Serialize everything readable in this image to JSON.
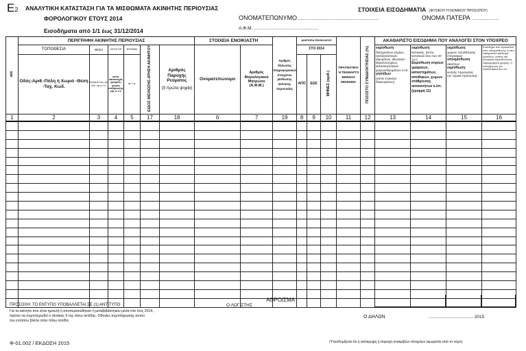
{
  "header": {
    "form_code": "E",
    "form_sub": "2",
    "title": "ΑΝΑΛΥΤΙΚΗ ΚΑΤΑΣΤΑΣΗ ΓΙΑ ΤΑ ΜΙΣΘΩΜΑΤΑ ΑΚΙΝΗΤΗΣ ΠΕΡΙΟΥΣΙΑΣ",
    "subtitle": "ΦΟΡΟΛΟΓΙΚΟΥ ΕΤΟΥΣ 2014",
    "period": "Εισοδήματα από 1/1 έως 31/12/2014"
  },
  "taxpayer": {
    "heading": "ΣΤΟΙΧΕΙΑ ΕΙΣΟΔΗΜΑΤΙΑ",
    "heading_note": "(ΦΥΣΙΚΟΥ Ή ΝΟΜΙΚΟΥ ΠΡΟΣΩΠΟΥ)",
    "name_label": "ΟΝΟΜΑΤΕΠΩΝΥΜΟ",
    "name_value": "........................................................................",
    "father_label": "ΟΝΟΜΑ ΠΑΤΕΡΑ",
    "father_value": "........................",
    "afm_label": "Α.Φ.Μ.",
    "afm_value": "...................................................."
  },
  "table": {
    "groups": {
      "sn": "α/α",
      "property": "ΠΕΡΙΓΡΑΦΗ ΑΚΙΝΗΤΗΣ ΠΕΡΙΟΥΣΙΑΣ",
      "tenant": "ΣΤΟΙΧΕΙΑ ΕΝΟΙΚΙΑΣΤΗ",
      "duration": "ΔΙΑΡΚΕΙΑ ΕΝΟΙΚΙΑΣΗΣ",
      "gross": "ΑΚΑΘΑΡΙΣΤΟ ΕΙΣΟΔΗΜΑ ΠΟΥ ΑΝΑΛΟΓΕΙ ΣΤΟΝ ΥΠΟΧΡΕΟ"
    },
    "sub": {
      "location": "ΤΟΠΟΘΕΣΙΑ",
      "position": "ΘΕΣΗ",
      "category": "ΚΑΤΗΓΟΡ",
      "area": "ΕΠΙΦΑΝ",
      "year": "ΣΤΟ 2014"
    },
    "cols": {
      "c2": "Οδός-Αριθ.-Πόλη ή Χωριό -Θέση -Ταχ. Κωδ.",
      "c3": "ισόγειο 1ος ορ 2ος ορ κ.τ.λ.",
      "c4": "οικία, κατάστημα, γραφείο, χώρος στάθμευσης γής κ.τ.λ.",
      "c5": "σε τ.μ.",
      "c17": "ΕΙΔΟΣ ΜΙΣΘΩΣΗΣ-ΧΡΗΣΗ ΑΚΙΝΗΤΟΥ",
      "c18": "Αριθμός Παροχής Ρεύματος",
      "c18b": "(9 πρώτα ψηφία)",
      "c6": "Ονοματεπώνυμο",
      "c7": "Αριθμός Φορολογικού Μητρώου (Α.Φ.Μ.)",
      "c19": "Αριθμός δήλωσης πληροφοριακών στοιχείων μίσθωσης ακίνητης περιουσίας",
      "c8": "ΑΠΟ",
      "c9": "ΕΩΣ",
      "c10": "ΜΗΝΕΣ (αριθ.)",
      "c11": "ΠΡΑΓΜΑΤΙΚΟ Ή ΤΕΚΜΑΡΤΟ ΜΗΝΙΑΙΟ ΜΙΣΘΩΜΑ",
      "c12": "ΠΟΣΟΣΤΟ ΣΥΝΙΔΙΟΚΤΗΣΙΑΣ (%)",
      "c13a": "εκμίσθωση",
      "c13b": "διατηρητέων κτιρίων, εκκλησιαστικών ιδρυμάτων, ιδιωτικών θεραπευτηρίων, κατασκηνωτικών χώρων/ιδρυμάτων κ.λπ.",
      "c13c": "γηπέδων",
      "c13d": "(εκτός ενοικίων δικαιωμάτων)",
      "c14a": "εκμίσθωση",
      "c14b": "κατοικίας, (εκτός κατοικιών άνω των 20 τ.μ.)",
      "c14c": "Εκμίσθωση κτιρίων γραφείων, καταστημάτων, αποθηκών, χώρων στάθμευσης αυτοκινήτων κ.λπ. (γραμμή 11)",
      "c15a": "εκμίσθωση",
      "c15b": "χώρων τοποθέτησης επιγραφών",
      "c15c": "υπεκμίσθωση",
      "c15d": "ακινήτων",
      "c15e": "εκμίσθωση",
      "c15f": "κινητής περιουσίας",
      "c15g": "(σε νομικά πρόσωπα)",
      "c16": "Εισόδημα που προκύπτει από υπεκμίσθωση, ή από πραγματικό μίσθωμα γηπέδων, καθώς και γεωργική εκμετάλλευση, παραχώρηση χρήσης, ή αποζημίωση για απαλλοτρίωση κ.λπ."
    },
    "numbers": [
      "1",
      "2",
      "3",
      "4",
      "5",
      "17",
      "18",
      "6",
      "7",
      "19",
      "8",
      "9",
      "10",
      "11",
      "12",
      "13",
      "14",
      "15",
      "16"
    ],
    "row_count": 21,
    "total_label": "ΑΘΡΟΙΣΜΑ"
  },
  "footer": {
    "notice_title": "ΠΡΟΣΟΧΗ:",
    "notice": "ΤΟ ΕΝΤΥΠΟ ΥΠΟΒΑΛΛΕΤΑΙ ΣΕ (1) ΑΝΤΙΤΥΠΟ",
    "note1": "Για τα ακίνητα που είναι ημιτελή ή αποπερατώθηκαν ή μεταβιβάστηκαν μέσα στο έτος 2014,",
    "note2": "πρέπει να συμπληρωθεί ο πίνακας ΙΙ της πίσω σελίδας. Οδηγίες συμπλήρωσης αυτού",
    "note3": "του εντύπου βλέπε στην πίσω σελίδα.",
    "accountant": "Ο ΛΟΓΙΣΤΗΣ",
    "declarant": "Ο ΔΗΛΩΝ",
    "date": ".................................... 2015",
    "form_id": "Φ-01.002 / ΕΚΔΟΣΗ 2015",
    "legal": "(Υπενθυμίζεται ότι η απόκρυψη ή παροχή ανακριβών στοιχείων τιμωρείται από το νόμο)."
  }
}
